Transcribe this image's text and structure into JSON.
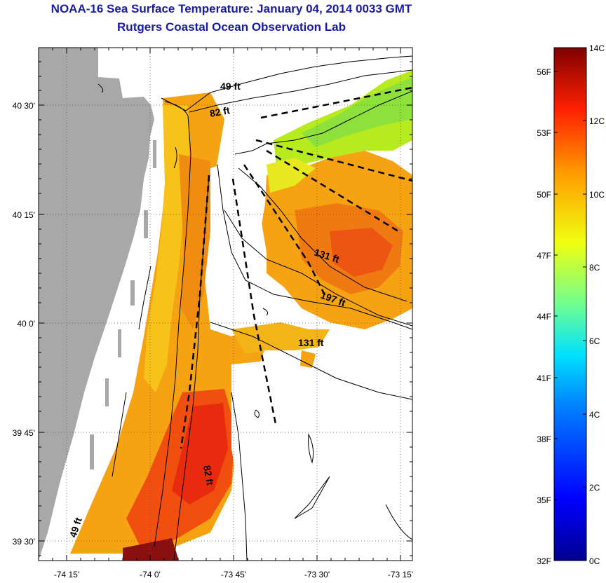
{
  "title": "NOAA-16 Sea Surface Temperature:  January 04, 2014 0033 GMT",
  "subtitle": "Rutgers Coastal Ocean Observation Lab",
  "axes": {
    "x_ticks": [
      "-74 15'",
      "-74 0'",
      "-73 45'",
      "-73 30'",
      "-73 15'"
    ],
    "y_ticks": [
      "40 30'",
      "40 15'",
      "40 0'",
      "39 45'",
      "39 30'"
    ]
  },
  "isobaths": [
    "49 ft",
    "82 ft",
    "131 ft",
    "197 ft",
    "131 ft",
    "82 ft",
    "49 ft"
  ],
  "colorbar": {
    "fahrenheit": [
      "56F",
      "53F",
      "50F",
      "47F",
      "44F",
      "41F",
      "38F",
      "35F",
      "32F"
    ],
    "celsius": [
      "14C",
      "12C",
      "10C",
      "8C",
      "6C",
      "4C",
      "2C",
      "0C"
    ]
  },
  "colors": {
    "title": "#1a1aa8",
    "land": "#a8a8a8",
    "sst_warm": "#e82a0e",
    "sst_mid": "#f5a312",
    "sst_cool": "#8ee03a"
  }
}
